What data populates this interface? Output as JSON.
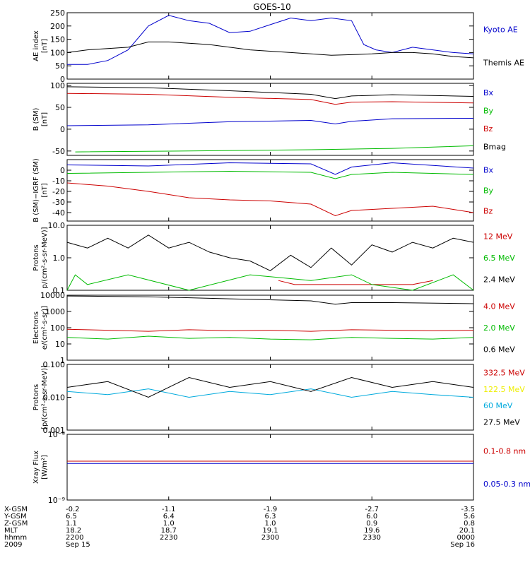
{
  "title": "GOES-10",
  "colors": {
    "black": "#000000",
    "blue": "#0000cc",
    "green": "#00bb00",
    "red": "#cc0000",
    "yellow": "#eeee00",
    "cyan": "#00aadd"
  },
  "chart_data": [
    {
      "type": "line",
      "title": "GOES-10",
      "ylabel": [
        "AE index",
        "[nT]"
      ],
      "ylim": [
        0,
        250
      ],
      "yticks": [
        {
          "v": 0,
          "label": "0"
        },
        {
          "v": 50,
          "label": "50"
        },
        {
          "v": 100,
          "label": "100"
        },
        {
          "v": 150,
          "label": "150"
        },
        {
          "v": 200,
          "label": "200"
        },
        {
          "v": 250,
          "label": "250"
        }
      ],
      "series": [
        {
          "name": "Kyoto AE",
          "color": "blue",
          "x": [
            0,
            0.05,
            0.1,
            0.15,
            0.2,
            0.25,
            0.3,
            0.35,
            0.4,
            0.45,
            0.5,
            0.55,
            0.6,
            0.65,
            0.7,
            0.73,
            0.76,
            0.8,
            0.85,
            0.9,
            0.95,
            1.0
          ],
          "y": [
            55,
            55,
            70,
            110,
            200,
            240,
            220,
            210,
            175,
            180,
            205,
            230,
            220,
            230,
            220,
            130,
            110,
            100,
            120,
            110,
            100,
            95
          ]
        },
        {
          "name": "Themis AE",
          "color": "black",
          "x": [
            0,
            0.05,
            0.1,
            0.15,
            0.2,
            0.25,
            0.3,
            0.35,
            0.4,
            0.45,
            0.5,
            0.55,
            0.6,
            0.65,
            0.7,
            0.75,
            0.8,
            0.85,
            0.9,
            0.95,
            1.0
          ],
          "y": [
            100,
            110,
            115,
            120,
            140,
            140,
            135,
            130,
            120,
            110,
            105,
            100,
            95,
            90,
            92,
            95,
            100,
            100,
            95,
            85,
            80
          ]
        }
      ]
    },
    {
      "type": "line",
      "ylabel": [
        "B (SM)",
        "[nT]"
      ],
      "ylim": [
        -60,
        105
      ],
      "yticks": [
        {
          "v": -50,
          "label": "-50"
        },
        {
          "v": 0,
          "label": "0"
        },
        {
          "v": 50,
          "label": "50"
        },
        {
          "v": 100,
          "label": "100"
        }
      ],
      "series": [
        {
          "name": "Bx",
          "color": "blue",
          "x": [
            0,
            0.2,
            0.4,
            0.6,
            0.66,
            0.7,
            0.8,
            1.0
          ],
          "y": [
            8,
            10,
            17,
            20,
            12,
            18,
            24,
            25
          ]
        },
        {
          "name": "By",
          "color": "green",
          "x": [
            0.02,
            0.3,
            0.6,
            0.8,
            1.0
          ],
          "y": [
            -52,
            -50,
            -47,
            -44,
            -38
          ]
        },
        {
          "name": "Bz",
          "color": "red",
          "x": [
            0,
            0.2,
            0.4,
            0.6,
            0.66,
            0.7,
            0.8,
            1.0
          ],
          "y": [
            82,
            80,
            73,
            68,
            57,
            62,
            63,
            60
          ]
        },
        {
          "name": "Bmag",
          "color": "black",
          "x": [
            0,
            0.2,
            0.4,
            0.6,
            0.66,
            0.7,
            0.8,
            1.0
          ],
          "y": [
            97,
            95,
            88,
            80,
            70,
            76,
            79,
            75
          ]
        }
      ]
    },
    {
      "type": "line",
      "ylabel": [
        "B (SM)−IGRF (SM)",
        "[nT]"
      ],
      "ylim": [
        -48,
        10
      ],
      "yticks": [
        {
          "v": -40,
          "label": "-40"
        },
        {
          "v": -30,
          "label": "-30"
        },
        {
          "v": -20,
          "label": "-20"
        },
        {
          "v": -10,
          "label": "-10"
        },
        {
          "v": 0,
          "label": "0"
        }
      ],
      "series": [
        {
          "name": "Bx",
          "color": "blue",
          "x": [
            0,
            0.2,
            0.4,
            0.6,
            0.66,
            0.7,
            0.8,
            1.0
          ],
          "y": [
            5,
            4,
            7,
            6,
            -4,
            3,
            7,
            2
          ]
        },
        {
          "name": "By",
          "color": "green",
          "x": [
            0,
            0.2,
            0.4,
            0.6,
            0.66,
            0.7,
            0.8,
            1.0
          ],
          "y": [
            -3,
            -2,
            -1,
            -2,
            -8,
            -4,
            -2,
            -4
          ]
        },
        {
          "name": "Bz",
          "color": "red",
          "x": [
            0,
            0.1,
            0.2,
            0.3,
            0.4,
            0.5,
            0.6,
            0.66,
            0.7,
            0.8,
            0.9,
            1.0
          ],
          "y": [
            -12,
            -15,
            -20,
            -26,
            -28,
            -29,
            -32,
            -43,
            -38,
            -36,
            -34,
            -40
          ]
        }
      ]
    },
    {
      "type": "line",
      "ylabel": [
        "Protons",
        "p/(cm²-s-sr-MeV)]"
      ],
      "yscale": "log",
      "ylim": [
        0.1,
        10
      ],
      "yticks": [
        {
          "v": 0.1,
          "label": "0.1"
        },
        {
          "v": 1,
          "label": "1.0"
        },
        {
          "v": 10,
          "label": "10.0"
        }
      ],
      "series": [
        {
          "name": "12 MeV",
          "color": "red",
          "x": [
            0.52,
            0.56,
            0.85,
            0.9
          ],
          "y": [
            0.2,
            0.15,
            0.15,
            0.2
          ]
        },
        {
          "name": "6.5 MeV",
          "color": "green",
          "x": [
            0.0,
            0.02,
            0.05,
            0.15,
            0.3,
            0.45,
            0.6,
            0.7,
            0.75,
            0.85,
            0.95,
            1.0
          ],
          "y": [
            0.1,
            0.3,
            0.15,
            0.3,
            0.1,
            0.3,
            0.2,
            0.3,
            0.15,
            0.1,
            0.3,
            0.1
          ]
        },
        {
          "name": "2.4 MeV",
          "color": "black",
          "x": [
            0,
            0.05,
            0.1,
            0.15,
            0.2,
            0.25,
            0.3,
            0.35,
            0.4,
            0.45,
            0.5,
            0.55,
            0.6,
            0.65,
            0.7,
            0.75,
            0.8,
            0.85,
            0.9,
            0.95,
            1.0
          ],
          "y": [
            3,
            2,
            4,
            2,
            5,
            2,
            3,
            1.5,
            1,
            0.8,
            0.4,
            1.2,
            0.5,
            2,
            0.6,
            2.5,
            1.5,
            3,
            2,
            4,
            3
          ]
        }
      ]
    },
    {
      "type": "line",
      "ylabel": [
        "Electrons",
        "e/(cm²-s-sr)]"
      ],
      "yscale": "log",
      "ylim": [
        1,
        10000
      ],
      "yticks": [
        {
          "v": 1,
          "label": "1"
        },
        {
          "v": 10,
          "label": "10"
        },
        {
          "v": 100,
          "label": "100"
        },
        {
          "v": 1000,
          "label": "1000"
        },
        {
          "v": 10000,
          "label": "10000"
        }
      ],
      "series": [
        {
          "name": "4.0 MeV",
          "color": "red",
          "x": [
            0,
            0.1,
            0.2,
            0.3,
            0.4,
            0.5,
            0.6,
            0.7,
            0.8,
            0.9,
            1.0
          ],
          "y": [
            80,
            70,
            60,
            75,
            65,
            70,
            60,
            75,
            70,
            65,
            70
          ]
        },
        {
          "name": "2.0 MeV",
          "color": "green",
          "x": [
            0,
            0.1,
            0.2,
            0.3,
            0.4,
            0.5,
            0.6,
            0.7,
            0.8,
            0.9,
            1.0
          ],
          "y": [
            25,
            20,
            30,
            22,
            25,
            20,
            18,
            25,
            22,
            20,
            25
          ]
        },
        {
          "name": "0.6 MeV",
          "color": "black",
          "x": [
            0,
            0.2,
            0.4,
            0.6,
            0.66,
            0.7,
            0.8,
            1.0
          ],
          "y": [
            9000,
            8000,
            6000,
            4500,
            2800,
            3500,
            3500,
            3000
          ]
        }
      ]
    },
    {
      "type": "line",
      "ylabel": [
        "Protons",
        "[p/(cm²-s-sr-MeV)]"
      ],
      "yscale": "log",
      "ylim": [
        0.001,
        0.1
      ],
      "yticks": [
        {
          "v": 0.001,
          "label": "0.001"
        },
        {
          "v": 0.01,
          "label": "0.010"
        },
        {
          "v": 0.1,
          "label": "0.100"
        }
      ],
      "series": [
        {
          "name": "332.5 MeV",
          "color": "red",
          "x": [],
          "y": []
        },
        {
          "name": "122.5 MeV",
          "color": "yellow",
          "x": [],
          "y": []
        },
        {
          "name": "60 MeV",
          "color": "cyan",
          "x": [
            0,
            0.1,
            0.2,
            0.3,
            0.4,
            0.5,
            0.6,
            0.7,
            0.8,
            0.9,
            1.0
          ],
          "y": [
            0.015,
            0.012,
            0.018,
            0.01,
            0.015,
            0.012,
            0.018,
            0.01,
            0.015,
            0.012,
            0.01
          ]
        },
        {
          "name": "27.5 MeV",
          "color": "black",
          "x": [
            0,
            0.1,
            0.2,
            0.3,
            0.4,
            0.5,
            0.6,
            0.7,
            0.8,
            0.9,
            1.0
          ],
          "y": [
            0.02,
            0.03,
            0.01,
            0.04,
            0.02,
            0.03,
            0.015,
            0.04,
            0.02,
            0.03,
            0.02
          ]
        }
      ]
    },
    {
      "type": "line",
      "ylabel": [
        "Xray Flux",
        "[W/m²]"
      ],
      "yscale": "log",
      "ylim": [
        1e-09,
        1e-08
      ],
      "yticks": [
        {
          "v": 1e-09,
          "label": "10⁻⁹"
        },
        {
          "v": 1e-08,
          "label": "10⁻⁸"
        }
      ],
      "series": [
        {
          "name": "0.1-0.8 nm",
          "color": "red",
          "x": [
            0,
            1.0
          ],
          "y": [
            3.9e-09,
            3.9e-09
          ]
        },
        {
          "name": "0.05-0.3 nm",
          "color": "blue",
          "x": [
            0,
            1.0
          ],
          "y": [
            3.6e-09,
            3.6e-09
          ]
        }
      ]
    }
  ],
  "xaxis": {
    "row_labels": [
      "X-GSM",
      "Y-GSM",
      "Z-GSM",
      "MLT",
      "hhmm",
      "2009"
    ],
    "columns": [
      {
        "pos": 0.0,
        "values": [
          "-0.2",
          "6.5",
          "1.1",
          "18.2",
          "2200",
          "Sep 15"
        ]
      },
      {
        "pos": 0.25,
        "values": [
          "-1.1",
          "6.4",
          "1.0",
          "18.7",
          "2230",
          ""
        ]
      },
      {
        "pos": 0.5,
        "values": [
          "-1.9",
          "6.3",
          "1.0",
          "19.1",
          "2300",
          ""
        ]
      },
      {
        "pos": 0.75,
        "values": [
          "-2.7",
          "6.0",
          "0.9",
          "19.6",
          "2330",
          ""
        ]
      },
      {
        "pos": 1.0,
        "values": [
          "-3.5",
          "5.6",
          "0.8",
          "20.1",
          "0000",
          "Sep 16"
        ]
      }
    ]
  }
}
